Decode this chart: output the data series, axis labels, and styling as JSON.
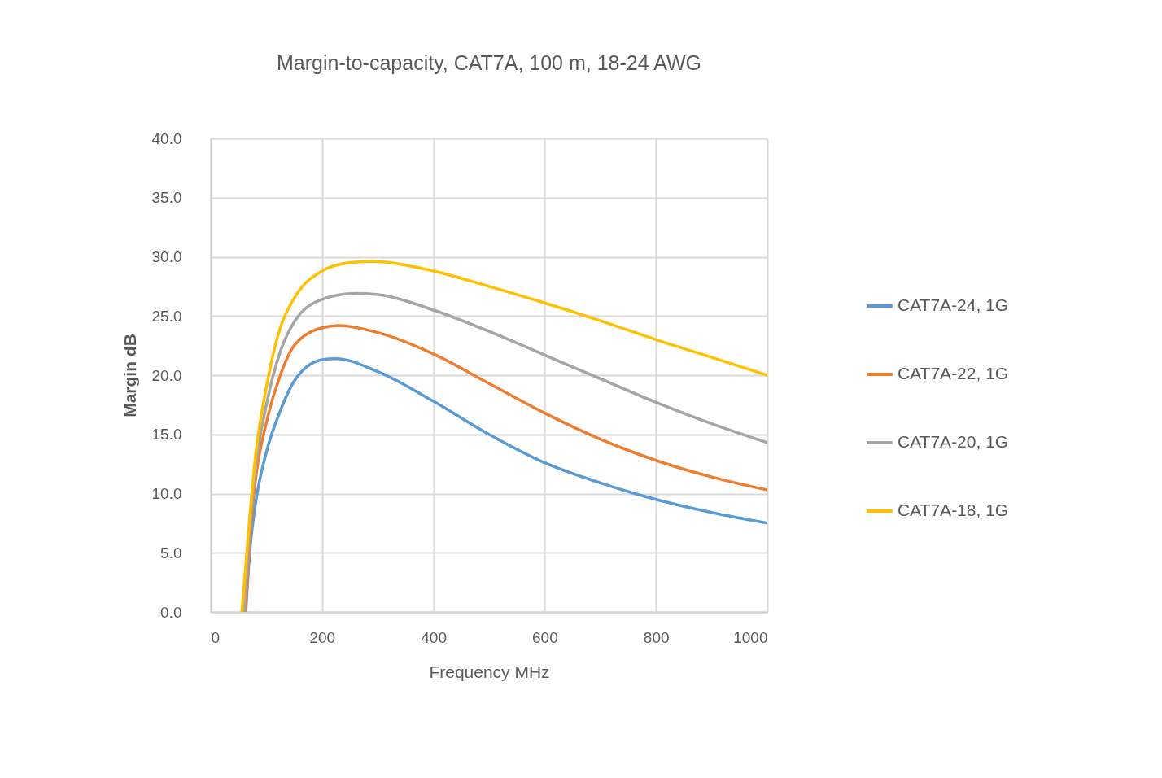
{
  "chart_data": {
    "type": "line",
    "title": "Margin-to-capacity, CAT7A, 100 m, 18-24 AWG",
    "xlabel": "Frequency MHz",
    "ylabel": "Margin dB",
    "xlim": [
      0,
      1000
    ],
    "xticks": [
      0,
      200,
      400,
      600,
      800,
      1000
    ],
    "ylim": [
      0,
      40
    ],
    "yticks": [
      {
        "value": 0,
        "label": "0.0"
      },
      {
        "value": 5,
        "label": "5.0"
      },
      {
        "value": 10,
        "label": "10.0"
      },
      {
        "value": 15,
        "label": "15.0"
      },
      {
        "value": 20,
        "label": "20.0"
      },
      {
        "value": 25,
        "label": "25.0"
      },
      {
        "value": 30,
        "label": "30.0"
      },
      {
        "value": 35,
        "label": "35.0"
      },
      {
        "value": 40,
        "label": "40.0"
      }
    ],
    "grid": true,
    "legend": "right",
    "marker": "none",
    "line_style": "solid",
    "series": [
      {
        "name": "CAT7A-24, 1G",
        "color": "#5b9bd5",
        "x": [
          63,
          70,
          80,
          100,
          125,
          150,
          200,
          225,
          300,
          400,
          500,
          600,
          700,
          800,
          900,
          1000
        ],
        "values": [
          0,
          5,
          9,
          13.5,
          17,
          19.5,
          21.3,
          21.4,
          20.3,
          17.8,
          15,
          12.6,
          10.9,
          9.5,
          8.4,
          7.5
        ]
      },
      {
        "name": "CAT7A-22, 1G",
        "color": "#ed7d31",
        "x": [
          62,
          70,
          80,
          100,
          125,
          150,
          200,
          230,
          300,
          400,
          500,
          600,
          700,
          800,
          900,
          1000
        ],
        "values": [
          0,
          6,
          11,
          16,
          20,
          22.5,
          24,
          24.2,
          23.6,
          21.8,
          19.3,
          16.8,
          14.6,
          12.8,
          11.4,
          10.3
        ]
      },
      {
        "name": "CAT7A-20, 1G",
        "color": "#a5a5a5",
        "x": [
          60,
          70,
          80,
          100,
          125,
          150,
          200,
          260,
          300,
          400,
          500,
          600,
          700,
          800,
          900,
          1000
        ],
        "values": [
          0,
          7,
          12,
          17.5,
          22,
          24.5,
          26.4,
          26.9,
          26.8,
          25.5,
          23.7,
          21.7,
          19.7,
          17.7,
          15.9,
          14.3
        ]
      },
      {
        "name": "CAT7A-18, 1G",
        "color": "#ffc000",
        "x": [
          56,
          70,
          80,
          100,
          125,
          150,
          200,
          250,
          290,
          400,
          500,
          600,
          700,
          800,
          900,
          1000
        ],
        "values": [
          0,
          8,
          13,
          19,
          24,
          26.5,
          28.8,
          29.5,
          29.6,
          28.8,
          27.5,
          26.1,
          24.6,
          23,
          21.5,
          20
        ]
      }
    ]
  }
}
